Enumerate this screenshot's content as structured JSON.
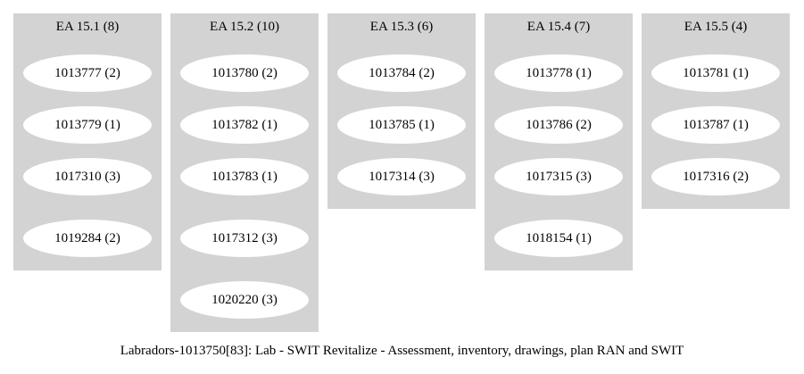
{
  "clusters": [
    {
      "title": "EA 15.1 (8)",
      "nodes": [
        "1013777 (2)",
        "1013779 (1)",
        "1017310 (3)",
        "1019284 (2)"
      ]
    },
    {
      "title": "EA 15.2 (10)",
      "nodes": [
        "1013780 (2)",
        "1013782 (1)",
        "1013783 (1)",
        "1017312 (3)",
        "1020220 (3)"
      ]
    },
    {
      "title": "EA 15.3 (6)",
      "nodes": [
        "1013784 (2)",
        "1013785 (1)",
        "1017314 (3)"
      ]
    },
    {
      "title": "EA 15.4 (7)",
      "nodes": [
        "1013778 (1)",
        "1013786 (2)",
        "1017315 (3)",
        "1018154 (1)"
      ]
    },
    {
      "title": "EA 15.5 (4)",
      "nodes": [
        "1013781 (1)",
        "1013787 (1)",
        "1017316 (2)"
      ]
    }
  ],
  "caption": "Labradors-1013750[83]: Lab - SWIT Revitalize - Assessment, inventory, drawings, plan RAN and SWIT",
  "colors": {
    "cluster_fill": "#d3d3d3",
    "node_fill": "#ffffff",
    "text": "#000000"
  }
}
